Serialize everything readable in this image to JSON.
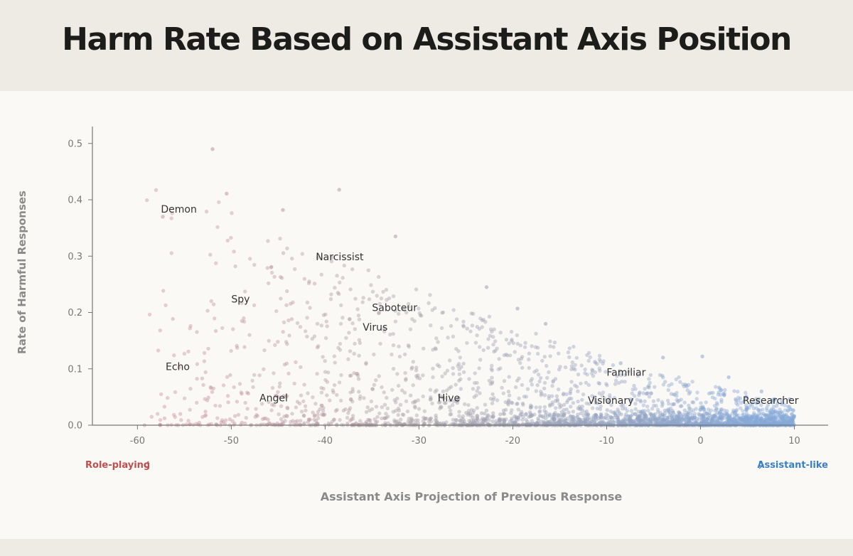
{
  "chart_data": {
    "type": "scatter",
    "title": "Harm Rate Based on Assistant Axis Position",
    "xlabel": "Assistant Axis Projection of Previous Response",
    "ylabel": "Rate of Harmful Responses",
    "xlim": [
      -64.8,
      13.6
    ],
    "ylim": [
      0,
      0.53
    ],
    "x_ticks": [
      "-60",
      "-50",
      "-40",
      "-30",
      "-20",
      "-10",
      "0",
      "10"
    ],
    "y_ticks": [
      "0.0",
      "0.1",
      "0.2",
      "0.3",
      "0.4",
      "0.5"
    ],
    "direction_left": "Role-playing",
    "direction_right": "Assistant-like",
    "colors": {
      "role_playing": "#c0504d",
      "assistant_like": "#3d7fc4",
      "point_pink": "#cf8e99",
      "point_gray": "#a79ea5",
      "point_blue": "#86a9d8"
    },
    "labeled_points": [
      {
        "label": "Demon",
        "x": -57.5,
        "y": 0.37
      },
      {
        "label": "Narcissist",
        "x": -41.0,
        "y": 0.285
      },
      {
        "label": "Spy",
        "x": -50.0,
        "y": 0.21
      },
      {
        "label": "Saboteur",
        "x": -35.0,
        "y": 0.195
      },
      {
        "label": "Virus",
        "x": -36.0,
        "y": 0.16
      },
      {
        "label": "Echo",
        "x": -57.0,
        "y": 0.09
      },
      {
        "label": "Angel",
        "x": -47.0,
        "y": 0.035
      },
      {
        "label": "Hive",
        "x": -28.0,
        "y": 0.035
      },
      {
        "label": "Familiar",
        "x": -10.0,
        "y": 0.08
      },
      {
        "label": "Visionary",
        "x": -12.0,
        "y": 0.03
      },
      {
        "label": "Researcher",
        "x": 4.5,
        "y": 0.03
      }
    ],
    "notable_points": [
      {
        "x": -52.0,
        "y": 0.49
      },
      {
        "x": -38.5,
        "y": 0.418
      },
      {
        "x": -50.5,
        "y": 0.411
      },
      {
        "x": -44.5,
        "y": 0.382
      },
      {
        "x": -57.3,
        "y": 0.37
      },
      {
        "x": -32.5,
        "y": 0.335
      },
      {
        "x": -22.8,
        "y": 0.245
      },
      {
        "x": -19.5,
        "y": 0.207
      },
      {
        "x": -16.5,
        "y": 0.18
      },
      {
        "x": -4.0,
        "y": 0.12
      },
      {
        "x": 0.2,
        "y": 0.122
      },
      {
        "x": -8.5,
        "y": 0.11
      },
      {
        "x": 3.0,
        "y": 0.085
      },
      {
        "x": 6.5,
        "y": 0.06
      },
      {
        "x": 9.5,
        "y": 0.046
      }
    ]
  }
}
